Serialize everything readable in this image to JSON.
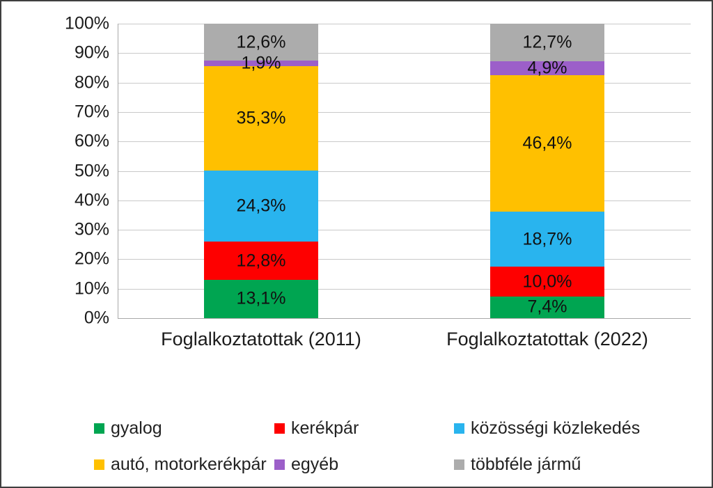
{
  "chart_data": {
    "type": "bar",
    "stacked": true,
    "title": "",
    "xlabel": "",
    "ylabel": "",
    "ylim": [
      0,
      100
    ],
    "grid": true,
    "legend_position": "bottom",
    "y_ticks": [
      "0%",
      "10%",
      "20%",
      "30%",
      "40%",
      "50%",
      "60%",
      "70%",
      "80%",
      "90%",
      "100%"
    ],
    "categories": [
      "Foglalkoztatottak (2011)",
      "Foglalkoztatottak (2022)"
    ],
    "series": [
      {
        "name": "gyalog",
        "color": "#00a551",
        "values": [
          13.1,
          7.4
        ],
        "labels": [
          "13,1%",
          "7,4%"
        ]
      },
      {
        "name": "kerékpár",
        "color": "#fe0000",
        "values": [
          12.8,
          10.0
        ],
        "labels": [
          "12,8%",
          "10,0%"
        ]
      },
      {
        "name": "közösségi közlekedés",
        "color": "#29b4ee",
        "values": [
          24.3,
          18.7
        ],
        "labels": [
          "24,3%",
          "18,7%"
        ]
      },
      {
        "name": "autó, motorkerékpár",
        "color": "#ffc000",
        "values": [
          35.3,
          46.4
        ],
        "labels": [
          "35,3%",
          "46,4%"
        ]
      },
      {
        "name": "egyéb",
        "color": "#9c5fc9",
        "values": [
          1.9,
          4.9
        ],
        "labels": [
          "1,9%",
          "4,9%"
        ]
      },
      {
        "name": "többféle jármű",
        "color": "#acacac",
        "values": [
          12.6,
          12.7
        ],
        "labels": [
          "12,6%",
          "12,7%"
        ]
      }
    ]
  },
  "colors": {
    "gridline": "#c9c9c9",
    "axis": "#a8a8a8",
    "text": "#1b1b1b",
    "background": "#ffffff"
  }
}
